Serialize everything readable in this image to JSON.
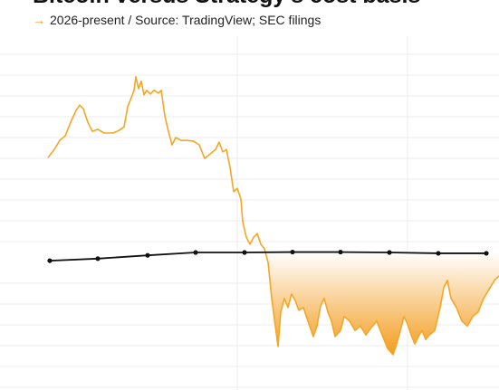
{
  "chart_data": {
    "type": "line",
    "title": "Bitcoin versus Strategy's cost basis",
    "subtitle_arrow": "→",
    "subtitle": "2026-present / Source: TradingView; SEC filings",
    "xlim": [
      -53,
      498
    ],
    "ylim": [
      40,
      135
    ],
    "fill_below_color": "#f39c1f",
    "series": [
      {
        "name": "Bitcoin",
        "color": "#f5a623",
        "x": [
          0,
          7,
          13,
          19,
          25,
          31,
          35,
          39,
          44,
          49,
          55,
          62,
          72,
          79,
          84,
          88,
          92,
          95,
          97,
          100,
          103,
          106,
          109,
          113,
          117,
          122,
          125,
          129,
          133,
          137,
          141,
          147,
          153,
          161,
          167,
          173,
          179,
          185,
          189,
          193,
          197,
          201,
          205,
          209,
          213,
          215,
          219,
          223,
          227,
          231,
          235,
          239,
          243,
          247,
          251,
          254,
          257,
          261,
          265,
          269,
          273,
          277,
          282,
          287,
          293,
          297,
          301,
          305,
          309,
          313,
          317,
          323,
          327,
          333,
          339,
          345,
          351,
          357,
          363,
          369,
          375,
          381,
          385,
          389,
          393,
          397,
          401,
          405,
          409,
          413,
          417,
          421,
          427,
          433,
          437,
          441,
          445,
          451,
          457,
          463,
          469,
          475,
          481,
          487,
          493,
          498
        ],
        "values": [
          96.6,
          98.6,
          100.8,
          101.9,
          105.2,
          108.1,
          109.4,
          108.5,
          105.2,
          103.0,
          103.5,
          102.6,
          102.6,
          103.3,
          104.1,
          109.0,
          111.2,
          113.0,
          116.3,
          113.4,
          115.2,
          111.9,
          113.0,
          112.1,
          113.0,
          112.3,
          113.0,
          106.8,
          103.0,
          99.7,
          101.5,
          100.8,
          100.8,
          100.6,
          99.7,
          96.4,
          97.5,
          98.6,
          100.4,
          98.0,
          98.6,
          94.2,
          88.3,
          89.1,
          86.5,
          81.0,
          77.2,
          75.5,
          77.2,
          78.1,
          75.5,
          74.4,
          71.1,
          62.3,
          55.6,
          50.6,
          59.0,
          62.3,
          60.1,
          63.4,
          61.8,
          59.4,
          60.1,
          56.8,
          53.0,
          55.6,
          60.5,
          62.3,
          59.0,
          56.8,
          53.0,
          54.5,
          57.9,
          56.8,
          54.5,
          55.6,
          53.4,
          55.2,
          56.8,
          53.4,
          50.1,
          48.6,
          51.2,
          54.5,
          57.9,
          56.1,
          53.4,
          51.2,
          53.0,
          54.5,
          52.3,
          53.4,
          54.5,
          60.1,
          64.9,
          66.7,
          62.3,
          60.1,
          56.8,
          55.6,
          57.9,
          59.0,
          62.3,
          64.5,
          66.7,
          67.8
        ]
      },
      {
        "name": "Strategy's cost basis",
        "color": "#111111",
        "markers": true,
        "x": [
          2,
          55,
          110,
          163,
          217,
          270,
          323,
          377,
          431,
          484
        ],
        "values": [
          71.5,
          72.0,
          72.8,
          73.5,
          73.5,
          73.6,
          73.6,
          73.5,
          73.3,
          73.3
        ]
      }
    ]
  }
}
